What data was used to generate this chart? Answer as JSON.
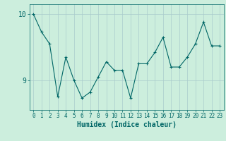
{
  "xlabel": "Humidex (Indice chaleur)",
  "ylabel": "",
  "x": [
    0,
    1,
    2,
    3,
    4,
    5,
    6,
    7,
    8,
    9,
    10,
    11,
    12,
    13,
    14,
    15,
    16,
    17,
    18,
    19,
    20,
    21,
    22,
    23
  ],
  "y": [
    10.0,
    9.73,
    9.55,
    8.75,
    9.35,
    9.0,
    8.73,
    8.82,
    9.05,
    9.28,
    9.15,
    9.15,
    8.73,
    9.25,
    9.25,
    9.42,
    9.65,
    9.2,
    9.2,
    9.35,
    9.55,
    9.88,
    9.52,
    9.52
  ],
  "line_color": "#006666",
  "marker": "+",
  "marker_size": 3,
  "bg_color": "#cceedd",
  "grid_color": "#aacccc",
  "tick_color": "#006666",
  "label_color": "#006666",
  "yticks": [
    9,
    10
  ],
  "ylim": [
    8.55,
    10.15
  ],
  "xlim": [
    -0.5,
    23.5
  ],
  "figsize": [
    3.2,
    2.0
  ],
  "dpi": 100
}
